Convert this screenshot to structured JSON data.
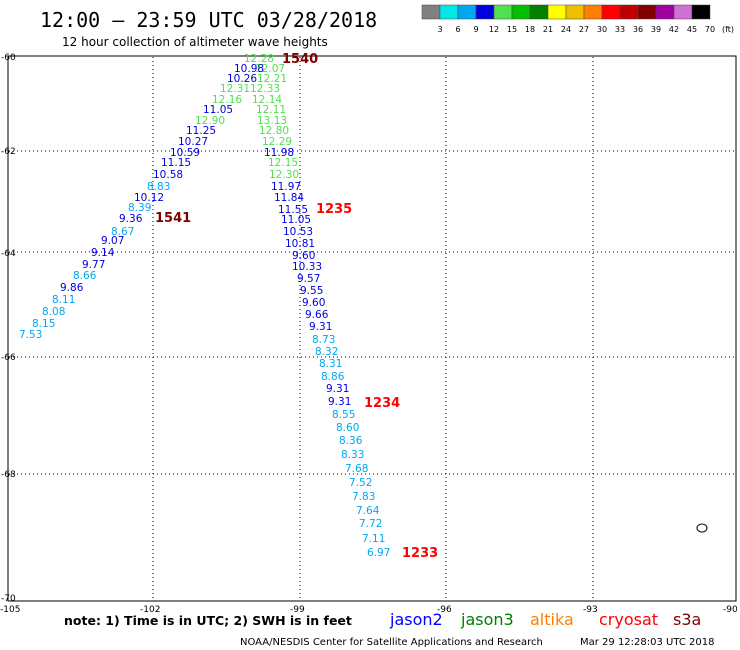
{
  "header": {
    "title": "12:00 — 23:59 UTC 03/28/2018",
    "subtitle": "12 hour collection of altimeter wave heights"
  },
  "legend": {
    "colors": [
      "#808080",
      "#00e8e8",
      "#00a8f0",
      "#0000e0",
      "#50e050",
      "#00c000",
      "#008000",
      "#ffff00",
      "#f0c000",
      "#ff8000",
      "#ff0000",
      "#c00000",
      "#800000",
      "#a000a0",
      "#d070d0",
      "#000000"
    ],
    "labels": [
      "3",
      "6",
      "9",
      "12",
      "15",
      "18",
      "21",
      "24",
      "27",
      "30",
      "33",
      "36",
      "39",
      "42",
      "45",
      "70",
      "(ft)"
    ]
  },
  "axes": {
    "lon_ticks": [
      "-105",
      "-102",
      "-99",
      "-96",
      "-93",
      "-90"
    ],
    "lat_ticks": [
      "-60",
      "-62",
      "-64",
      "-66",
      "-68",
      "-70"
    ]
  },
  "footer": {
    "note": "note: 1) Time is in UTC; 2) SWH is in feet",
    "satellites": [
      {
        "name": "jason2",
        "color": "#0000ff"
      },
      {
        "name": "jason3",
        "color": "#008000"
      },
      {
        "name": "altika",
        "color": "#ff8000"
      },
      {
        "name": "cryosat",
        "color": "#ff0000"
      },
      {
        "name": "s3a",
        "color": "#800000"
      }
    ],
    "credit": "NOAA/NESDIS Center for Satellite Applications and Research",
    "timestamp": "Mar 29 12:28:03 UTC 2018"
  },
  "time_labels": [
    {
      "text": "1540",
      "color": "#800000"
    },
    {
      "text": "1541",
      "color": "#800000"
    },
    {
      "text": "1235",
      "color": "#ff0000"
    },
    {
      "text": "1234",
      "color": "#ff0000"
    },
    {
      "text": "1233",
      "color": "#ff0000"
    }
  ],
  "chart_data": {
    "type": "scatter",
    "title": "12:00 — 23:59 UTC 03/28/2018",
    "subtitle": "12 hour collection of altimeter wave heights",
    "xlim": [
      -105,
      -90
    ],
    "ylim": [
      -70,
      -60
    ],
    "tracks": [
      {
        "name": "track-1540",
        "values": [
          {
            "v": "12.28",
            "c": "#50e050"
          },
          {
            "v": "12.07",
            "c": "#50e050"
          },
          {
            "v": "10.98",
            "c": "#0000e0"
          },
          {
            "v": "12.21",
            "c": "#50e050"
          },
          {
            "v": "10.26",
            "c": "#0000e0"
          },
          {
            "v": "12.33",
            "c": "#50e050"
          },
          {
            "v": "12.31",
            "c": "#50e050"
          },
          {
            "v": "12.14",
            "c": "#50e050"
          },
          {
            "v": "12.16",
            "c": "#50e050"
          },
          {
            "v": "12.11",
            "c": "#50e050"
          },
          {
            "v": "11.05",
            "c": "#0000e0"
          },
          {
            "v": "13.13",
            "c": "#50e050"
          },
          {
            "v": "12.90",
            "c": "#50e050"
          },
          {
            "v": "12.80",
            "c": "#50e050"
          },
          {
            "v": "11.25",
            "c": "#0000e0"
          },
          {
            "v": "12.29",
            "c": "#50e050"
          },
          {
            "v": "10.27",
            "c": "#0000e0"
          },
          {
            "v": "11.98",
            "c": "#0000e0"
          },
          {
            "v": "10.59",
            "c": "#0000e0"
          },
          {
            "v": "12.15",
            "c": "#50e050"
          },
          {
            "v": "11.15",
            "c": "#0000e0"
          },
          {
            "v": "12.30",
            "c": "#50e050"
          },
          {
            "v": "10.58",
            "c": "#0000e0"
          },
          {
            "v": "11.97",
            "c": "#0000e0"
          },
          {
            "v": "8.83",
            "c": "#00a8f0"
          },
          {
            "v": "11.84",
            "c": "#0000e0"
          },
          {
            "v": "10.12",
            "c": "#0000e0"
          },
          {
            "v": "11.55",
            "c": "#0000e0"
          },
          {
            "v": "8.39",
            "c": "#00a8f0"
          },
          {
            "v": "11.05",
            "c": "#0000e0"
          },
          {
            "v": "9.36",
            "c": "#0000e0"
          },
          {
            "v": "10.53",
            "c": "#0000e0"
          },
          {
            "v": "8.67",
            "c": "#00a8f0"
          },
          {
            "v": "10.81",
            "c": "#0000e0"
          },
          {
            "v": "9.07",
            "c": "#0000e0"
          },
          {
            "v": "9.60",
            "c": "#0000e0"
          },
          {
            "v": "9.14",
            "c": "#0000e0"
          },
          {
            "v": "10.33",
            "c": "#0000e0"
          },
          {
            "v": "9.77",
            "c": "#0000e0"
          },
          {
            "v": "9.57",
            "c": "#0000e0"
          },
          {
            "v": "8.66",
            "c": "#00a8f0"
          },
          {
            "v": "9.55",
            "c": "#0000e0"
          },
          {
            "v": "9.86",
            "c": "#0000e0"
          },
          {
            "v": "9.60",
            "c": "#0000e0"
          },
          {
            "v": "8.11",
            "c": "#00a8f0"
          },
          {
            "v": "9.66",
            "c": "#0000e0"
          },
          {
            "v": "8.08",
            "c": "#00a8f0"
          },
          {
            "v": "9.31",
            "c": "#0000e0"
          },
          {
            "v": "8.15",
            "c": "#00a8f0"
          },
          {
            "v": "8.73",
            "c": "#00a8f0"
          },
          {
            "v": "7.53",
            "c": "#00a8f0"
          },
          {
            "v": "8.32",
            "c": "#00a8f0"
          },
          {
            "v": "8.31",
            "c": "#00a8f0"
          },
          {
            "v": "8.86",
            "c": "#00a8f0"
          },
          {
            "v": "9.31",
            "c": "#0000e0"
          },
          {
            "v": "9.31",
            "c": "#0000e0"
          },
          {
            "v": "8.55",
            "c": "#00a8f0"
          },
          {
            "v": "8.60",
            "c": "#00a8f0"
          },
          {
            "v": "8.36",
            "c": "#00a8f0"
          },
          {
            "v": "8.33",
            "c": "#00a8f0"
          },
          {
            "v": "7.68",
            "c": "#00a8f0"
          },
          {
            "v": "7.52",
            "c": "#00a8f0"
          },
          {
            "v": "7.83",
            "c": "#00a8f0"
          },
          {
            "v": "7.64",
            "c": "#00a8f0"
          },
          {
            "v": "7.72",
            "c": "#00a8f0"
          },
          {
            "v": "7.11",
            "c": "#00a8f0"
          },
          {
            "v": "6.97",
            "c": "#00a8f0"
          }
        ]
      }
    ]
  }
}
